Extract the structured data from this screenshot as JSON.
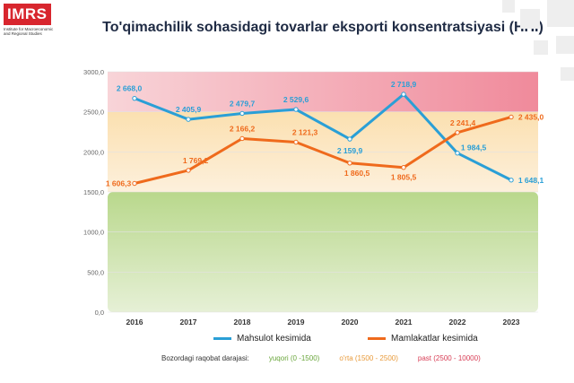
{
  "logo": {
    "text": "IMRS",
    "subtitle": "Institute for Macroeconomic and Regional Studies"
  },
  "chart_data": {
    "type": "line",
    "title": "To'qimachilik sohasidagi tovarlar eksporti konsentratsiyasi (HHI)",
    "categories": [
      "2016",
      "2017",
      "2018",
      "2019",
      "2020",
      "2021",
      "2022",
      "2023"
    ],
    "ylim": [
      0,
      3000
    ],
    "yticks": [
      "0,0",
      "500,0",
      "1000,0",
      "1500,0",
      "2000,0",
      "2500,0",
      "3000,0"
    ],
    "grid": true,
    "series": [
      {
        "name": "Mahsulot kesimida",
        "color": "#2a9fd6",
        "values": [
          2668.0,
          2405.9,
          2479.7,
          2529.6,
          2159.9,
          2718.9,
          1984.5,
          1648.1
        ],
        "labels": [
          "2 668,0",
          "2 405,9",
          "2 479,7",
          "2 529,6",
          "2 159,9",
          "2 718,9",
          "1 984,5",
          "1 648,1"
        ]
      },
      {
        "name": "Mamlakatlar kesimida",
        "color": "#ef6a1c",
        "values": [
          1606.3,
          1769.2,
          2166.2,
          2121.3,
          1860.5,
          1805.5,
          2241.4,
          2435.0
        ],
        "labels": [
          "1 606,3",
          "1 769,2",
          "2 166,2",
          "2 121,3",
          "1 860,5",
          "1 805,5",
          "2 241,4",
          "2 435,0"
        ]
      }
    ],
    "bands": [
      {
        "from": 0,
        "to": 1500,
        "color": "#c7dfa6",
        "label": "yuqori (0 -1500)"
      },
      {
        "from": 1500,
        "to": 2500,
        "color": "#fbe6c2",
        "label": "o'rta (1500 - 2500)"
      },
      {
        "from": 2500,
        "to": 3000,
        "color": "#f4b9c1",
        "label": "past (2500 - 10000)"
      }
    ],
    "band_legend_title": "Bozordagi raqobat darajasi:"
  }
}
